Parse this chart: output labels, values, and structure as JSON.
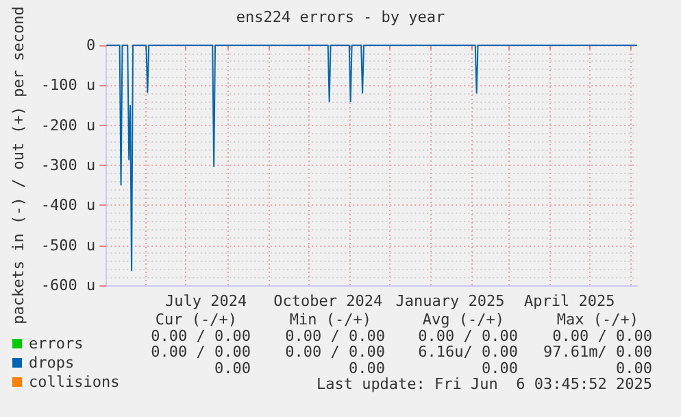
{
  "chart_data": {
    "type": "line",
    "title": "ens224 errors - by year",
    "ylabel": "packets in (-) / out (+) per second",
    "xlim": [
      "2024-05-02",
      "2025-06-06"
    ],
    "xticks": [
      {
        "value": "2024-06-01",
        "label": null
      },
      {
        "value": "2024-07-01",
        "label": null
      },
      {
        "value": "2024-07-16",
        "label": "July 2024"
      },
      {
        "value": "2024-08-01",
        "label": null
      },
      {
        "value": "2024-09-01",
        "label": null
      },
      {
        "value": "2024-10-01",
        "label": null
      },
      {
        "value": "2024-10-16",
        "label": "October 2024"
      },
      {
        "value": "2024-11-01",
        "label": null
      },
      {
        "value": "2024-12-01",
        "label": null
      },
      {
        "value": "2025-01-01",
        "label": null
      },
      {
        "value": "2025-01-16",
        "label": "January 2025"
      },
      {
        "value": "2025-02-01",
        "label": null
      },
      {
        "value": "2025-03-01",
        "label": null
      },
      {
        "value": "2025-04-01",
        "label": null
      },
      {
        "value": "2025-04-16",
        "label": "April 2025"
      },
      {
        "value": "2025-05-01",
        "label": null
      },
      {
        "value": "2025-06-01",
        "label": null
      }
    ],
    "ylim": [
      -600,
      0
    ],
    "yticks": [
      {
        "value": -600,
        "label": "-600 u"
      },
      {
        "value": -500,
        "label": "-500 u"
      },
      {
        "value": -400,
        "label": "-400 u"
      },
      {
        "value": -300,
        "label": "-300 u"
      },
      {
        "value": -200,
        "label": "-200 u"
      },
      {
        "value": -100,
        "label": "-100 u"
      },
      0
    ],
    "grid": true,
    "legend": "bottom left",
    "series": [
      {
        "name": "errors",
        "color": "#00cc00"
      },
      {
        "name": "drops",
        "color": "#0066b3",
        "x": [
          "2024-05-02",
          "2024-05-12",
          "2024-05-13",
          "2024-05-14",
          "2024-05-18",
          "2024-05-19",
          "2024-05-20",
          "2024-05-21",
          "2024-05-22",
          "2024-06-01",
          "2024-06-02",
          "2024-06-03",
          "2024-07-21",
          "2024-07-22",
          "2024-07-23",
          "2024-10-16",
          "2024-10-17",
          "2024-10-18",
          "2024-11-01",
          "2024-11-02",
          "2024-11-03",
          "2024-11-10",
          "2024-11-11",
          "2024-11-12",
          "2025-02-04",
          "2025-02-05",
          "2025-02-06",
          "2025-06-06"
        ],
        "values": [
          0,
          0,
          -349,
          0,
          0,
          -286,
          -151,
          -563,
          0,
          0,
          -118,
          0,
          0,
          -303,
          0,
          0,
          -141,
          0,
          0,
          -141,
          0,
          0,
          -119,
          0,
          0,
          -119,
          0,
          0
        ]
      },
      {
        "name": "collisions",
        "color": "#ff8000"
      }
    ],
    "annotations": [
      "Cur (-/+)",
      "Min (-/+)",
      "Avg (-/+)",
      "Max (-/+)",
      "0.00 / 0.00",
      "0.00 / 0.00",
      "0.00 / 0.00",
      "0.00 / 0.00",
      "0.00 / 0.00",
      "0.00 / 0.00",
      "6.16u/ 0.00",
      "97.61m/ 0.00",
      "0.00",
      "0.00",
      "0.00",
      "0.00",
      "Last update: Fri Jun  6 03:45:52 2025"
    ]
  }
}
